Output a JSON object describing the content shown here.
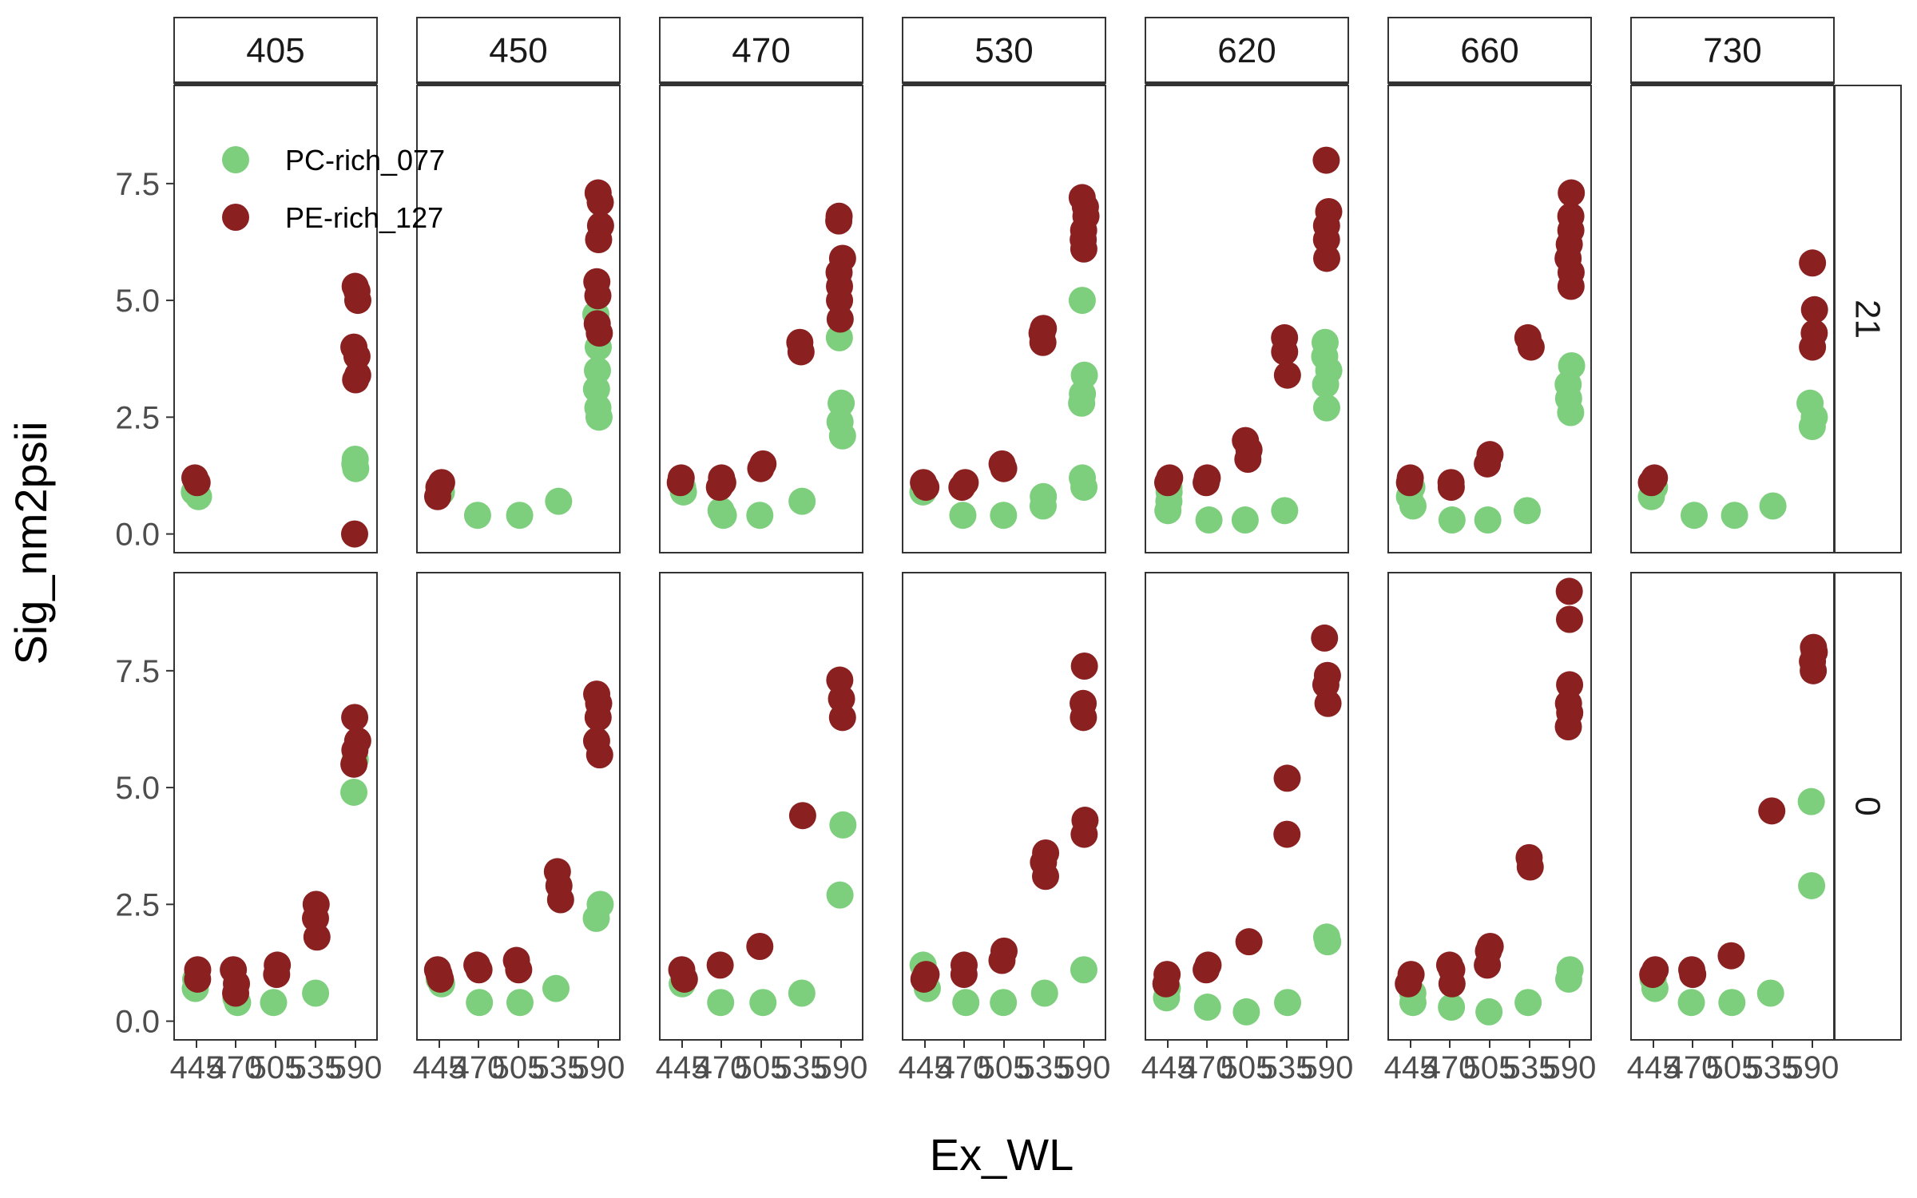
{
  "chart_data": {
    "type": "scatter",
    "xlabel": "Ex_WL",
    "ylabel": "Sig_nm2psii",
    "ylim": [
      -0.4,
      9.6
    ],
    "y_ticks": [
      0.0,
      2.5,
      5.0,
      7.5
    ],
    "y_tick_labels": [
      "0.0",
      "2.5",
      "5.0",
      "7.5"
    ],
    "x_categories": [
      "445",
      "470",
      "505",
      "535",
      "590"
    ],
    "facet_cols": [
      "405",
      "450",
      "470",
      "530",
      "620",
      "660",
      "730"
    ],
    "facet_rows": [
      "21",
      "0"
    ],
    "legend": {
      "placement": "top-left, inside first panel",
      "entries": [
        {
          "label": "PC-rich_077",
          "color": "#7dcf7d"
        },
        {
          "label": "PE-rich_127",
          "color": "#8b2020"
        }
      ]
    },
    "series_colors": {
      "PC": "#7dcf7d",
      "PE": "#8b2020"
    },
    "panels": [
      {
        "row": "21",
        "col": "405",
        "PC": [
          [
            "445",
            [
              0.8,
              0.9
            ]
          ],
          [
            "590",
            [
              1.4,
              1.5,
              1.6
            ]
          ]
        ],
        "PE": [
          [
            "445",
            [
              1.1,
              1.2
            ]
          ],
          [
            "590",
            [
              0.0,
              3.3,
              3.4,
              3.8,
              4.0,
              5.0,
              5.2,
              5.3
            ]
          ]
        ]
      },
      {
        "row": "21",
        "col": "450",
        "PC": [
          [
            "445",
            [
              0.9,
              1.0,
              1.0
            ]
          ],
          [
            "470",
            [
              0.4
            ]
          ],
          [
            "505",
            [
              0.4
            ]
          ],
          [
            "535",
            [
              0.7
            ]
          ],
          [
            "590",
            [
              2.5,
              2.7,
              3.1,
              3.5,
              4.0,
              4.7
            ]
          ]
        ],
        "PE": [
          [
            "445",
            [
              0.8,
              1.0,
              1.1
            ]
          ],
          [
            "590",
            [
              4.3,
              4.5,
              5.1,
              5.4,
              6.3,
              6.6,
              7.1,
              7.3
            ]
          ]
        ]
      },
      {
        "row": "21",
        "col": "470",
        "PC": [
          [
            "445",
            [
              0.9,
              1.0
            ]
          ],
          [
            "470",
            [
              0.4,
              0.5
            ]
          ],
          [
            "505",
            [
              0.4
            ]
          ],
          [
            "535",
            [
              0.7
            ]
          ],
          [
            "590",
            [
              2.1,
              2.4,
              2.8,
              4.2
            ]
          ]
        ],
        "PE": [
          [
            "445",
            [
              1.1,
              1.2
            ]
          ],
          [
            "470",
            [
              1.0,
              1.1,
              1.2
            ]
          ],
          [
            "505",
            [
              1.4,
              1.5
            ]
          ],
          [
            "535",
            [
              3.9,
              4.1
            ]
          ],
          [
            "590",
            [
              4.6,
              5.0,
              5.3,
              5.6,
              5.9,
              6.7,
              6.8
            ]
          ]
        ]
      },
      {
        "row": "21",
        "col": "530",
        "PC": [
          [
            "445",
            [
              0.9,
              1.0
            ]
          ],
          [
            "470",
            [
              0.4
            ]
          ],
          [
            "505",
            [
              0.4
            ]
          ],
          [
            "535",
            [
              0.6,
              0.8
            ]
          ],
          [
            "590",
            [
              1.0,
              1.2,
              2.8,
              3.0,
              3.4,
              5.0
            ]
          ]
        ],
        "PE": [
          [
            "445",
            [
              1.0,
              1.1
            ]
          ],
          [
            "470",
            [
              1.0,
              1.1
            ]
          ],
          [
            "505",
            [
              1.4,
              1.5
            ]
          ],
          [
            "535",
            [
              4.1,
              4.3,
              4.4
            ]
          ],
          [
            "590",
            [
              6.1,
              6.3,
              6.5,
              6.8,
              7.0,
              7.2
            ]
          ]
        ]
      },
      {
        "row": "21",
        "col": "620",
        "PC": [
          [
            "445",
            [
              0.5,
              0.7,
              0.9,
              1.0
            ]
          ],
          [
            "470",
            [
              0.3
            ]
          ],
          [
            "505",
            [
              0.3
            ]
          ],
          [
            "535",
            [
              0.5
            ]
          ],
          [
            "590",
            [
              2.7,
              3.2,
              3.5,
              3.8,
              4.1
            ]
          ]
        ],
        "PE": [
          [
            "445",
            [
              1.1,
              1.2
            ]
          ],
          [
            "470",
            [
              1.1,
              1.2
            ]
          ],
          [
            "505",
            [
              1.6,
              1.8,
              2.0
            ]
          ],
          [
            "535",
            [
              3.4,
              3.9,
              4.2
            ]
          ],
          [
            "590",
            [
              5.9,
              6.3,
              6.6,
              6.9,
              8.0
            ]
          ]
        ]
      },
      {
        "row": "21",
        "col": "660",
        "PC": [
          [
            "445",
            [
              0.6,
              0.8,
              1.0
            ]
          ],
          [
            "470",
            [
              0.3
            ]
          ],
          [
            "505",
            [
              0.3
            ]
          ],
          [
            "535",
            [
              0.5
            ]
          ],
          [
            "590",
            [
              2.6,
              2.9,
              3.2,
              3.6
            ]
          ]
        ],
        "PE": [
          [
            "445",
            [
              1.1,
              1.2
            ]
          ],
          [
            "470",
            [
              1.0,
              1.1
            ]
          ],
          [
            "505",
            [
              1.5,
              1.7
            ]
          ],
          [
            "535",
            [
              4.0,
              4.2
            ]
          ],
          [
            "590",
            [
              5.3,
              5.6,
              5.9,
              6.2,
              6.5,
              6.8,
              7.3
            ]
          ]
        ]
      },
      {
        "row": "21",
        "col": "730",
        "PC": [
          [
            "445",
            [
              0.8,
              1.0
            ]
          ],
          [
            "470",
            [
              0.4
            ]
          ],
          [
            "505",
            [
              0.4
            ]
          ],
          [
            "535",
            [
              0.6
            ]
          ],
          [
            "590",
            [
              2.3,
              2.5,
              2.8
            ]
          ]
        ],
        "PE": [
          [
            "445",
            [
              1.1,
              1.2
            ]
          ],
          [
            "590",
            [
              4.0,
              4.3,
              4.8,
              5.8
            ]
          ]
        ]
      },
      {
        "row": "0",
        "col": "405",
        "PC": [
          [
            "445",
            [
              0.7,
              0.9
            ]
          ],
          [
            "470",
            [
              0.4,
              0.5
            ]
          ],
          [
            "505",
            [
              0.4
            ]
          ],
          [
            "535",
            [
              0.6
            ]
          ],
          [
            "590",
            [
              4.9,
              5.6
            ]
          ]
        ],
        "PE": [
          [
            "445",
            [
              0.9,
              1.1
            ]
          ],
          [
            "470",
            [
              0.6,
              0.8,
              1.1
            ]
          ],
          [
            "505",
            [
              1.0,
              1.2
            ]
          ],
          [
            "535",
            [
              1.8,
              2.2,
              2.5
            ]
          ],
          [
            "590",
            [
              5.5,
              5.8,
              6.0,
              6.5
            ]
          ]
        ]
      },
      {
        "row": "0",
        "col": "450",
        "PC": [
          [
            "445",
            [
              0.8,
              0.9
            ]
          ],
          [
            "470",
            [
              0.4
            ]
          ],
          [
            "505",
            [
              0.4
            ]
          ],
          [
            "535",
            [
              0.7
            ]
          ],
          [
            "590",
            [
              2.2,
              2.5
            ]
          ]
        ],
        "PE": [
          [
            "445",
            [
              0.9,
              1.0,
              1.1
            ]
          ],
          [
            "470",
            [
              1.1,
              1.2
            ]
          ],
          [
            "505",
            [
              1.1,
              1.3
            ]
          ],
          [
            "535",
            [
              2.6,
              2.9,
              3.2
            ]
          ],
          [
            "590",
            [
              5.7,
              6.0,
              6.5,
              6.8,
              7.0
            ]
          ]
        ]
      },
      {
        "row": "0",
        "col": "470",
        "PC": [
          [
            "445",
            [
              0.8
            ]
          ],
          [
            "470",
            [
              0.4
            ]
          ],
          [
            "505",
            [
              0.4
            ]
          ],
          [
            "535",
            [
              0.6
            ]
          ],
          [
            "590",
            [
              2.7,
              4.2
            ]
          ]
        ],
        "PE": [
          [
            "445",
            [
              0.9,
              1.1
            ]
          ],
          [
            "470",
            [
              1.2
            ]
          ],
          [
            "505",
            [
              1.6
            ]
          ],
          [
            "535",
            [
              4.4
            ]
          ],
          [
            "590",
            [
              6.5,
              6.9,
              7.3
            ]
          ]
        ]
      },
      {
        "row": "0",
        "col": "530",
        "PC": [
          [
            "445",
            [
              0.7,
              1.2
            ]
          ],
          [
            "470",
            [
              0.4
            ]
          ],
          [
            "505",
            [
              0.4
            ]
          ],
          [
            "535",
            [
              0.6
            ]
          ],
          [
            "590",
            [
              1.1
            ]
          ]
        ],
        "PE": [
          [
            "445",
            [
              0.9,
              1.0
            ]
          ],
          [
            "470",
            [
              1.0,
              1.2
            ]
          ],
          [
            "505",
            [
              1.3,
              1.5
            ]
          ],
          [
            "535",
            [
              3.1,
              3.4,
              3.6
            ]
          ],
          [
            "590",
            [
              4.0,
              4.3,
              6.5,
              6.8,
              7.6
            ]
          ]
        ]
      },
      {
        "row": "0",
        "col": "620",
        "PC": [
          [
            "445",
            [
              0.5,
              0.7
            ]
          ],
          [
            "470",
            [
              0.3
            ]
          ],
          [
            "505",
            [
              0.2
            ]
          ],
          [
            "535",
            [
              0.4
            ]
          ],
          [
            "590",
            [
              1.7,
              1.8
            ]
          ]
        ],
        "PE": [
          [
            "445",
            [
              0.8,
              1.0
            ]
          ],
          [
            "470",
            [
              1.1,
              1.2
            ]
          ],
          [
            "505",
            [
              1.7
            ]
          ],
          [
            "535",
            [
              4.0,
              5.2
            ]
          ],
          [
            "590",
            [
              6.8,
              7.2,
              7.4,
              8.2
            ]
          ]
        ]
      },
      {
        "row": "0",
        "col": "660",
        "PC": [
          [
            "445",
            [
              0.4,
              0.6
            ]
          ],
          [
            "470",
            [
              0.3
            ]
          ],
          [
            "505",
            [
              0.2
            ]
          ],
          [
            "535",
            [
              0.4
            ]
          ],
          [
            "590",
            [
              0.9,
              1.1
            ]
          ]
        ],
        "PE": [
          [
            "445",
            [
              0.8,
              1.0
            ]
          ],
          [
            "470",
            [
              0.8,
              1.1,
              1.2
            ]
          ],
          [
            "505",
            [
              1.2,
              1.5,
              1.6
            ]
          ],
          [
            "535",
            [
              3.3,
              3.5
            ]
          ],
          [
            "590",
            [
              6.3,
              6.6,
              6.8,
              7.2,
              8.6,
              9.2
            ]
          ]
        ]
      },
      {
        "row": "0",
        "col": "730",
        "PC": [
          [
            "445",
            [
              0.7,
              0.9
            ]
          ],
          [
            "470",
            [
              0.4
            ]
          ],
          [
            "505",
            [
              0.4
            ]
          ],
          [
            "535",
            [
              0.6
            ]
          ],
          [
            "590",
            [
              2.9,
              4.7
            ]
          ]
        ],
        "PE": [
          [
            "445",
            [
              1.0,
              1.1
            ]
          ],
          [
            "470",
            [
              1.0,
              1.1
            ]
          ],
          [
            "505",
            [
              1.4
            ]
          ],
          [
            "535",
            [
              4.5
            ]
          ],
          [
            "590",
            [
              7.5,
              7.7,
              7.9,
              8.0
            ]
          ]
        ]
      }
    ]
  }
}
